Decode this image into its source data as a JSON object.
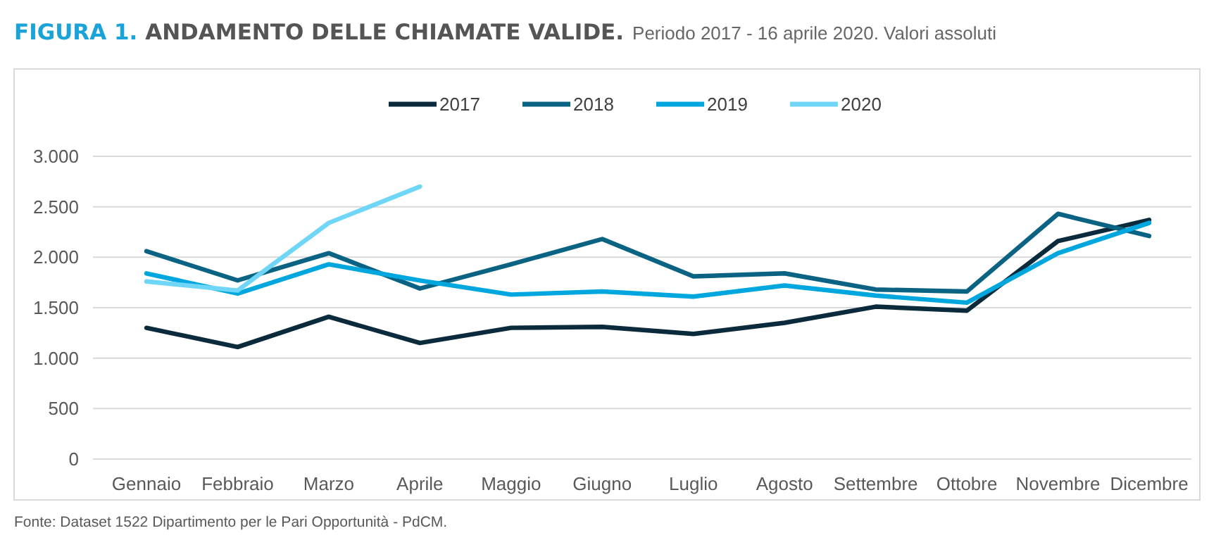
{
  "chart_data": {
    "type": "line",
    "title": "FIGURA 1. ANDAMENTO DELLE CHIAMATE VALIDE.",
    "subtitle": "Periodo 2017 - 16 aprile 2020. Valori assoluti",
    "categories": [
      "Gennaio",
      "Febbraio",
      "Marzo",
      "Aprile",
      "Maggio",
      "Giugno",
      "Luglio",
      "Agosto",
      "Settembre",
      "Ottobre",
      "Novembre",
      "Dicembre"
    ],
    "series": [
      {
        "name": "2017",
        "color": "#0b2b3c",
        "values": [
          1300,
          1110,
          1410,
          1150,
          1300,
          1310,
          1240,
          1350,
          1510,
          1470,
          2160,
          2370
        ]
      },
      {
        "name": "2018",
        "color": "#0b6384",
        "values": [
          2060,
          1770,
          2040,
          1690,
          1930,
          2180,
          1810,
          1840,
          1680,
          1660,
          2430,
          2210
        ]
      },
      {
        "name": "2019",
        "color": "#00a7de",
        "values": [
          1840,
          1640,
          1930,
          1770,
          1630,
          1660,
          1610,
          1720,
          1620,
          1550,
          2040,
          2340
        ]
      },
      {
        "name": "2020",
        "color": "#6fd6f8",
        "values": [
          1760,
          1670,
          2340,
          2700,
          null,
          null,
          null,
          null,
          null,
          null,
          null,
          null
        ]
      }
    ],
    "ylim": [
      0,
      3000
    ],
    "yticks": [
      0,
      500,
      {
        "value": 1000,
        "label": "1.000"
      },
      {
        "value": 1500,
        "label": "1.500"
      },
      {
        "value": 2000,
        "label": "2.000"
      },
      {
        "value": 2500,
        "label": "2.500"
      },
      {
        "value": 3000,
        "label": "3.000"
      }
    ],
    "grid": "y",
    "legend": "top",
    "marker": "none",
    "line_style": "solid",
    "annotations": [
      "Fonte: Dataset 1522 Dipartimento per le Pari Opportunità - PdCM."
    ]
  }
}
